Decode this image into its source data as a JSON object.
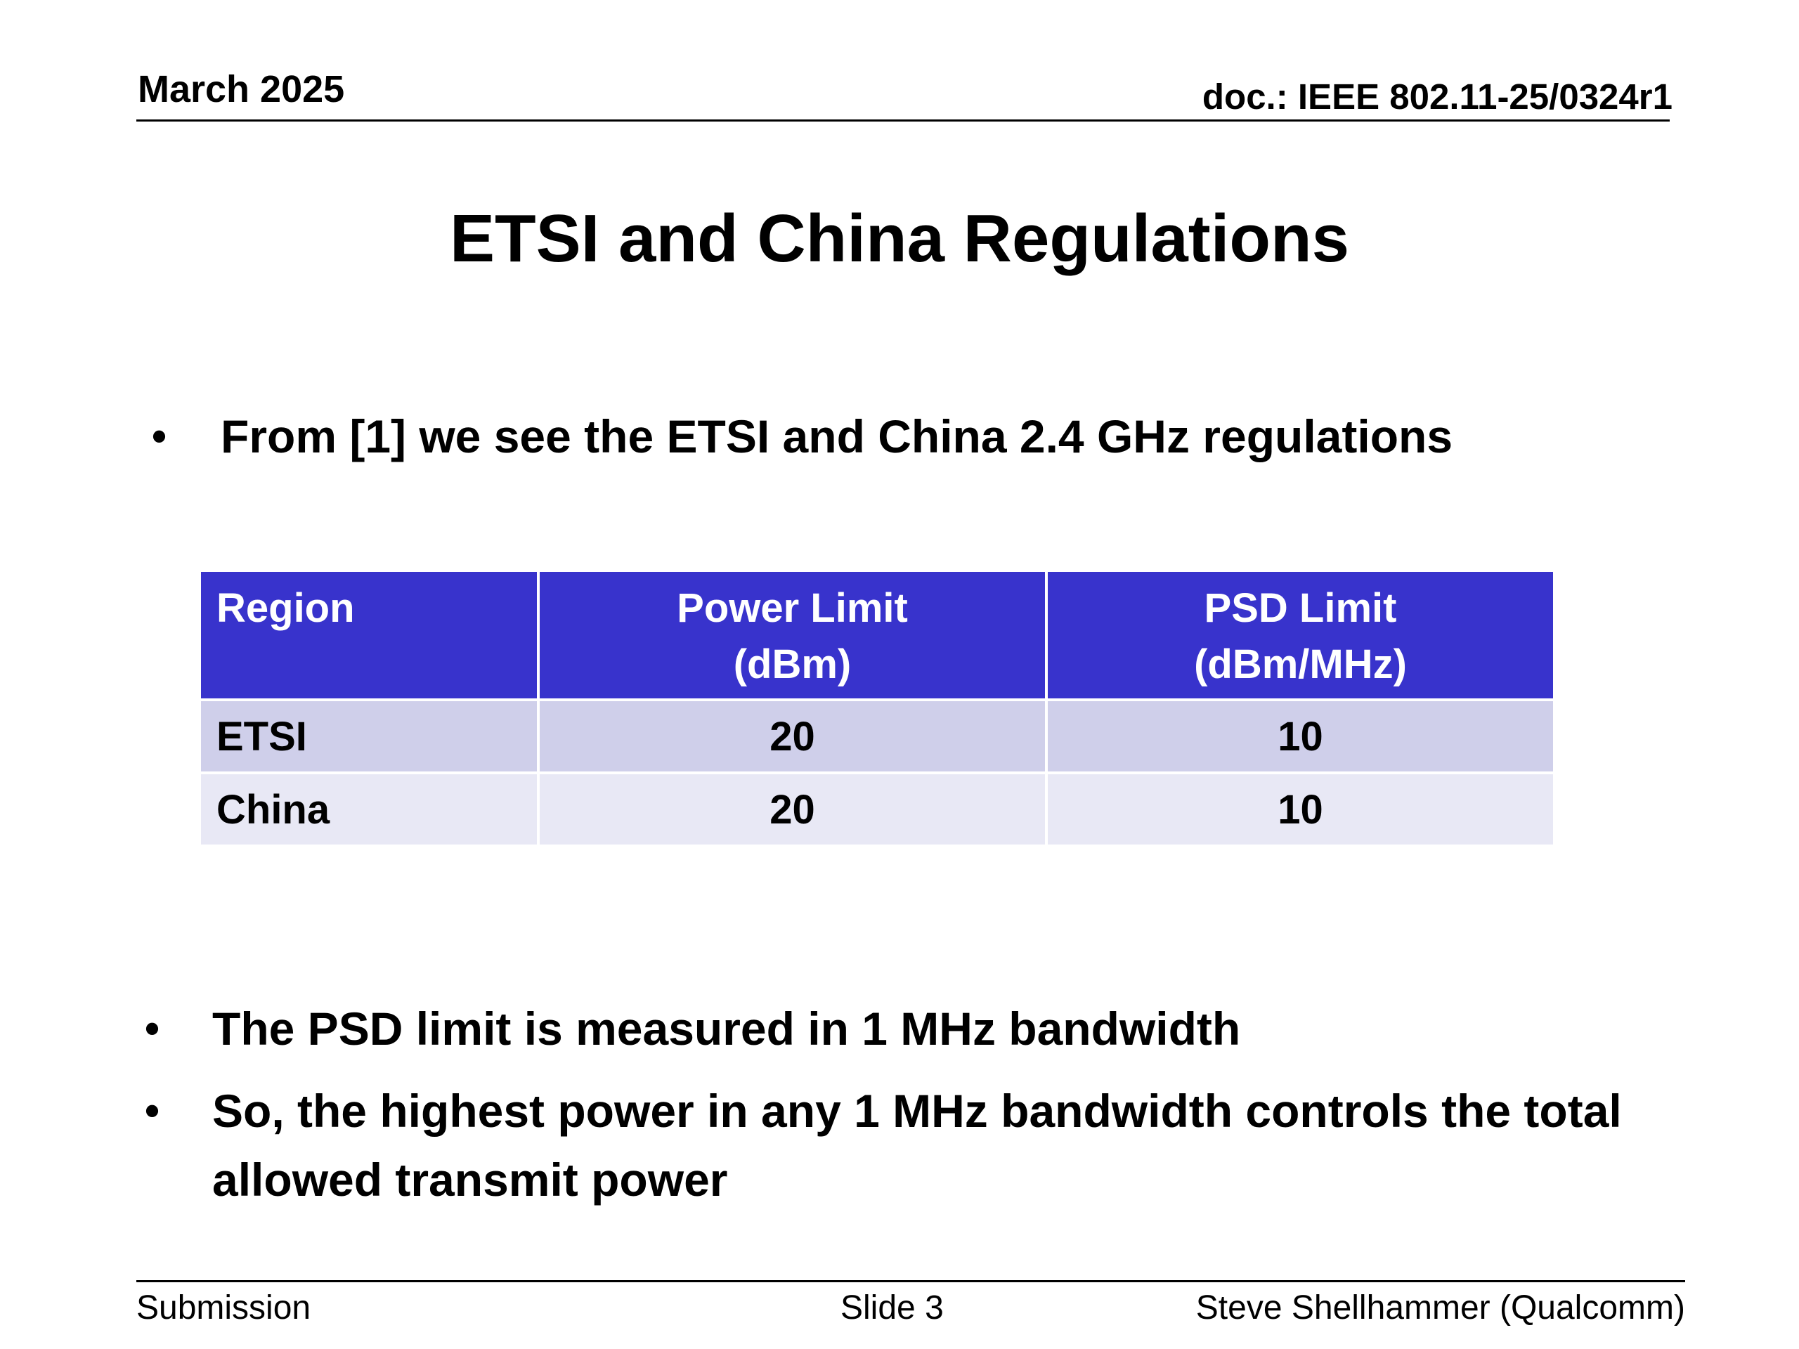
{
  "header": {
    "date": "March 2025",
    "doc_id": "doc.: IEEE 802.11-25/0324r1"
  },
  "slide": {
    "title": "ETSI and China Regulations"
  },
  "bullets": {
    "marker": "•",
    "intro": "From [1] we see the ETSI and China 2.4 GHz regulations",
    "psd_measure": "The PSD limit is measured in 1 MHz bandwidth",
    "conclusion": "So, the highest power in any 1 MHz bandwidth controls the total allowed transmit power"
  },
  "table": {
    "columns": [
      {
        "line1": "Region",
        "line2": ""
      },
      {
        "line1": "Power Limit",
        "line2": "(dBm)"
      },
      {
        "line1": "PSD Limit",
        "line2": "(dBm/MHz)"
      }
    ],
    "rows": [
      {
        "region": "ETSI",
        "power_limit": "20",
        "psd_limit": "10"
      },
      {
        "region": "China",
        "power_limit": "20",
        "psd_limit": "10"
      }
    ],
    "colors": {
      "header_bg": "#3833cc",
      "row_odd_bg": "#cfcfea",
      "row_even_bg": "#e8e8f5"
    }
  },
  "footer": {
    "left": "Submission",
    "center": "Slide 3",
    "right": "Steve Shellhammer (Qualcomm)"
  }
}
